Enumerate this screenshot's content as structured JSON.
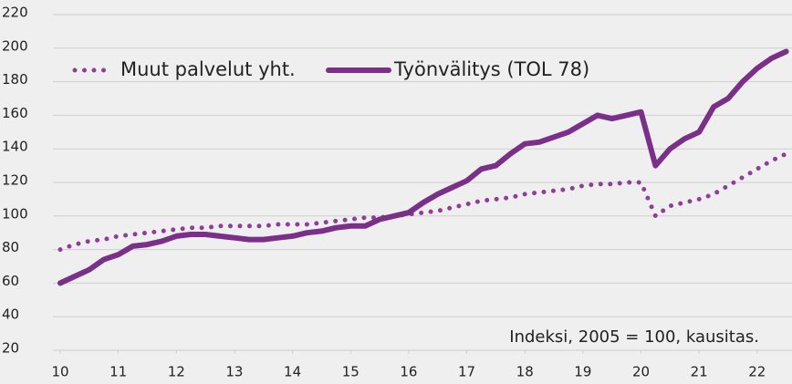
{
  "chart_data": {
    "type": "line",
    "annotation": "Indeksi, 2005 = 100, kausitas.",
    "x": [
      10,
      10.25,
      10.5,
      10.75,
      11,
      11.25,
      11.5,
      11.75,
      12,
      12.25,
      12.5,
      12.75,
      13,
      13.25,
      13.5,
      13.75,
      14,
      14.25,
      14.5,
      14.75,
      15,
      15.25,
      15.5,
      15.75,
      16,
      16.25,
      16.5,
      16.75,
      17,
      17.25,
      17.5,
      17.75,
      18,
      18.25,
      18.5,
      18.75,
      19,
      19.25,
      19.5,
      19.75,
      20,
      20.25,
      20.5,
      20.75,
      21,
      21.25,
      21.5,
      21.75,
      22,
      22.25,
      22.5
    ],
    "series": [
      {
        "name": "Muut palvelut yht.",
        "color": "#8e3d99",
        "style": "dotted",
        "values": [
          80,
          83,
          85,
          86,
          88,
          89,
          90,
          91,
          92,
          93,
          93,
          94,
          94,
          94,
          94,
          95,
          95,
          95,
          96,
          97,
          98,
          99,
          99,
          100,
          101,
          102,
          103,
          105,
          107,
          109,
          110,
          111,
          113,
          114,
          115,
          116,
          118,
          119,
          119,
          120,
          120,
          100,
          106,
          108,
          110,
          113,
          118,
          123,
          128,
          133,
          137
        ]
      },
      {
        "name": "Työnvälitys (TOL 78)",
        "color": "#7a2f88",
        "style": "solid",
        "values": [
          60,
          64,
          68,
          74,
          77,
          82,
          83,
          85,
          88,
          89,
          89,
          88,
          87,
          86,
          86,
          87,
          88,
          90,
          91,
          93,
          94,
          94,
          98,
          100,
          102,
          108,
          113,
          117,
          121,
          128,
          130,
          137,
          143,
          144,
          147,
          150,
          155,
          160,
          158,
          160,
          162,
          130,
          140,
          146,
          150,
          165,
          170,
          180,
          188,
          194,
          198
        ]
      }
    ],
    "xlim": [
      10,
      22.6
    ],
    "xticks": [
      10,
      11,
      12,
      13,
      14,
      15,
      16,
      17,
      18,
      19,
      20,
      21,
      22
    ],
    "ylim": [
      20,
      220
    ],
    "yticks": [
      20,
      40,
      60,
      80,
      100,
      120,
      140,
      160,
      180,
      200,
      220
    ],
    "grid": true
  }
}
